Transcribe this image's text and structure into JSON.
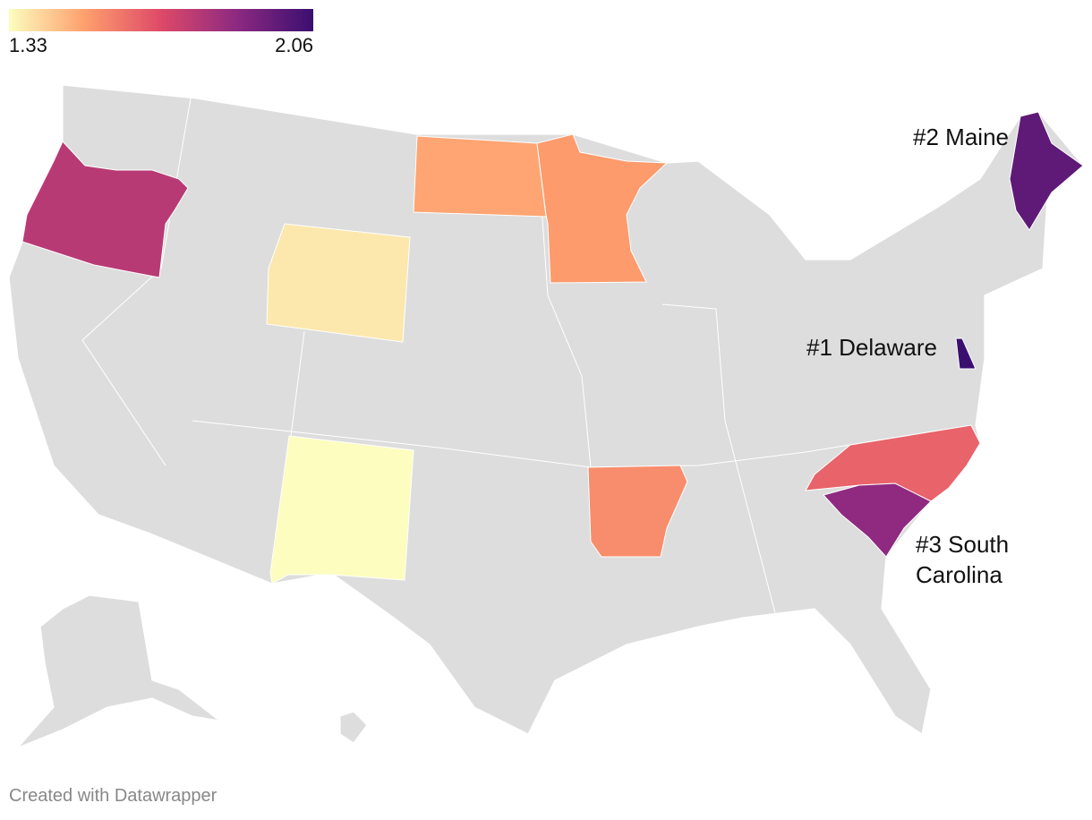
{
  "chart_data": {
    "type": "choropleth",
    "colorscale": [
      "#fcfdbf",
      "#fe9f6d",
      "#de4968",
      "#8c2981",
      "#3b0f70"
    ],
    "legend": {
      "min": 1.33,
      "max": 2.06,
      "labels": [
        "1.33",
        "2.06"
      ]
    },
    "regions": [
      {
        "value": 1.78
      },
      {
        "value": 1.37
      },
      {
        "value": 1.33
      },
      {
        "value": 1.5
      },
      {
        "value": 1.52
      },
      {
        "value": 1.55
      },
      {
        "value": 1.64
      },
      {
        "value": 1.87
      },
      {
        "value": 1.98
      },
      {
        "value": 2.06
      }
    ],
    "annotations": [
      "#2 Maine",
      "#1 Delaware",
      "#3 South Carolina"
    ],
    "footer": "Created with Datawrapper"
  }
}
